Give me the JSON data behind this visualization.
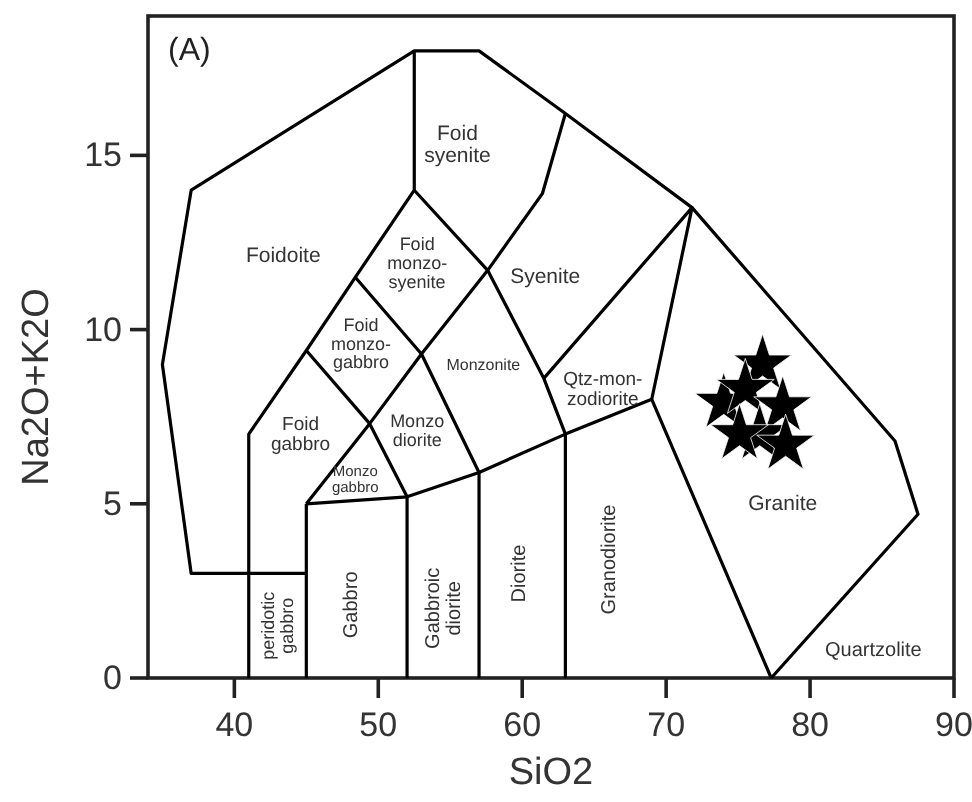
{
  "chart_data": {
    "type": "scatter",
    "xlabel": "SiO2",
    "ylabel": "Na2O+K2O",
    "xlim": [
      34,
      90
    ],
    "ylim": [
      0,
      19
    ],
    "xticks": [
      40,
      50,
      60,
      70,
      80,
      90
    ],
    "yticks": [
      0,
      5,
      10,
      15
    ],
    "marker": "star",
    "series": [
      {
        "type": "line",
        "color": "#000000",
        "marker": "none",
        "x": [
          45,
          41,
          37,
          35,
          37,
          52.5,
          57,
          63,
          71.8,
          85.9,
          87.5,
          77.3
        ],
        "values": [
          3,
          3,
          3,
          9,
          14,
          18,
          18,
          16.2,
          13.5,
          6.8,
          4.7,
          0
        ]
      },
      {
        "type": "line",
        "color": "#000000",
        "marker": "none",
        "x": [
          41,
          41,
          45,
          48.4,
          52.5,
          52.5
        ],
        "values": [
          0,
          7,
          9.4,
          11.5,
          14,
          18
        ]
      },
      {
        "type": "line",
        "color": "#000000",
        "marker": "none",
        "x": [
          45,
          45
        ],
        "values": [
          0,
          5
        ]
      },
      {
        "type": "line",
        "color": "#000000",
        "marker": "none",
        "x": [
          45,
          49.4,
          53,
          57.6,
          61.4,
          63
        ],
        "values": [
          5,
          7.3,
          9.3,
          11.7,
          13.9,
          16.2
        ]
      },
      {
        "type": "line",
        "color": "#000000",
        "marker": "none",
        "x": [
          45,
          49.4,
          52,
          52
        ],
        "values": [
          9.4,
          7.3,
          5.2,
          0
        ]
      },
      {
        "type": "line",
        "color": "#000000",
        "marker": "none",
        "x": [
          48.4,
          53,
          57,
          57
        ],
        "values": [
          11.5,
          9.3,
          5.9,
          0
        ]
      },
      {
        "type": "line",
        "color": "#000000",
        "marker": "none",
        "x": [
          52.5,
          57.6,
          61.5,
          63,
          63
        ],
        "values": [
          14,
          11.7,
          8.6,
          7,
          0
        ]
      },
      {
        "type": "line",
        "color": "#000000",
        "marker": "none",
        "x": [
          45,
          52,
          57,
          63,
          69,
          77.3
        ],
        "values": [
          5,
          5.2,
          5.9,
          7,
          8,
          0
        ]
      },
      {
        "type": "line",
        "color": "#000000",
        "marker": "none",
        "x": [
          61.5,
          71.8,
          69
        ],
        "values": [
          8.6,
          13.5,
          8
        ]
      },
      {
        "color": "#000000",
        "x": [
          76.7,
          74.0,
          75.5,
          78.1,
          76.5,
          78.3,
          75.1
        ],
        "values": [
          9.0,
          7.9,
          8.3,
          7.8,
          7.0,
          6.7,
          7.0
        ]
      }
    ],
    "annotations": [
      "(A)",
      "Foidoite",
      "Foid\nsyenite",
      "Foid\nmonzo-\nsyenite",
      "Foid\nmonzo-\ngabbro",
      "Monzonite",
      "Syenite",
      "Qtz-mon-\nzodiorite",
      "Foid\ngabbro",
      "Monzo\ndiorite",
      "Monzo\ngabbro",
      "peridotic\ngabbro",
      "Gabbro",
      "Gabbroic\ndiorite",
      "Diorite",
      "Granodiorite",
      "Granite",
      "Quartzolite"
    ]
  }
}
